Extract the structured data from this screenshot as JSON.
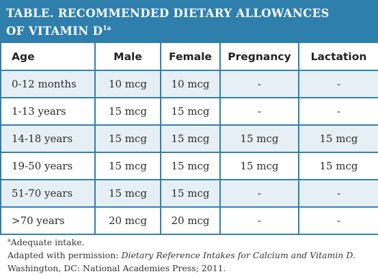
{
  "title": {
    "line1": "TABLE. RECOMMENDED DIETARY ALLOWANCES",
    "line2": "OF VITAMIN D",
    "sup": "1a"
  },
  "table": {
    "headers": [
      "Age",
      "Male",
      "Female",
      "Pregnancy",
      "Lactation"
    ],
    "rows": [
      [
        "0-12 months",
        "10 mcg",
        "10 mcg",
        "-",
        "-"
      ],
      [
        "1-13 years",
        "15 mcg",
        "15 mcg",
        "-",
        "-"
      ],
      [
        "14-18 years",
        "15 mcg",
        "15 mcg",
        "15 mcg",
        "15 mcg"
      ],
      [
        "19-50 years",
        "15 mcg",
        "15 mcg",
        "15 mcg",
        "15 mcg"
      ],
      [
        "51-70 years",
        "15 mcg",
        "15 mcg",
        "-",
        "-"
      ],
      [
        ">70 years",
        "20 mcg",
        "20 mcg",
        "-",
        "-"
      ]
    ],
    "row_shade_color": "#e6eff5",
    "border_color": "#2f7fad"
  },
  "footnotes": {
    "note_a_marker": "a",
    "note_a_text": "Adequate intake.",
    "adapted_prefix": "Adapted with permission: ",
    "adapted_title": "Dietary Reference Intakes for Calcium and Vitamin D.",
    "adapted_suffix": "Washington, DC: National Academies Press; 2011."
  },
  "colors": {
    "title_bar": "#2f7fad",
    "title_text": "#ffffff"
  }
}
